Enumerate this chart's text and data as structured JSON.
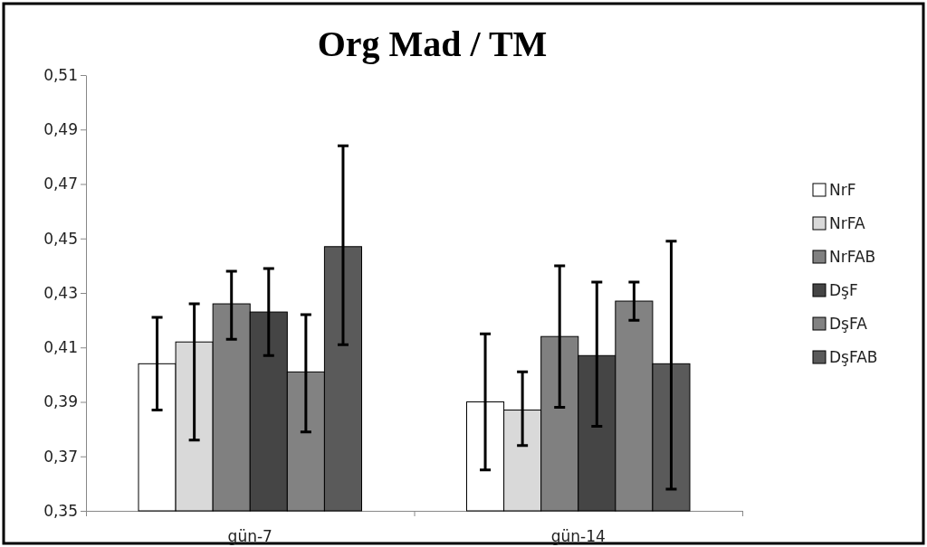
{
  "chart_data": {
    "type": "bar",
    "title": "Org Mad / TM",
    "categories": [
      "gün-7",
      "gün-14"
    ],
    "series": [
      {
        "name": "NrF",
        "color": "#ffffff",
        "values": [
          0.404,
          0.39
        ],
        "errors": [
          [
            0.387,
            0.421
          ],
          [
            0.365,
            0.415
          ]
        ]
      },
      {
        "name": "NrFA",
        "color": "#d9d9d9",
        "values": [
          0.412,
          0.387
        ],
        "errors": [
          [
            0.376,
            0.426
          ],
          [
            0.374,
            0.401
          ]
        ]
      },
      {
        "name": "NrFAB",
        "color": "#808080",
        "values": [
          0.426,
          0.414
        ],
        "errors": [
          [
            0.413,
            0.438
          ],
          [
            0.388,
            0.44
          ]
        ]
      },
      {
        "name": "DşF",
        "color": "#454545",
        "values": [
          0.423,
          0.407
        ],
        "errors": [
          [
            0.407,
            0.439
          ],
          [
            0.381,
            0.434
          ]
        ]
      },
      {
        "name": "DşFA",
        "color": "#828282",
        "values": [
          0.401,
          0.427
        ],
        "errors": [
          [
            0.379,
            0.422
          ],
          [
            0.42,
            0.434
          ]
        ]
      },
      {
        "name": "DşFAB",
        "color": "#5a5a5a",
        "values": [
          0.447,
          0.404
        ],
        "errors": [
          [
            0.411,
            0.484
          ],
          [
            0.358,
            0.449
          ]
        ]
      }
    ],
    "ylim": [
      0.35,
      0.51
    ],
    "yticks": [
      {
        "value": 0.35,
        "label": "0,35"
      },
      {
        "value": 0.37,
        "label": "0,37"
      },
      {
        "value": 0.39,
        "label": "0,39"
      },
      {
        "value": 0.41,
        "label": "0,41"
      },
      {
        "value": 0.43,
        "label": "0,43"
      },
      {
        "value": 0.45,
        "label": "0,45"
      },
      {
        "value": 0.47,
        "label": "0,47"
      },
      {
        "value": 0.49,
        "label": "0,49"
      },
      {
        "value": 0.51,
        "label": "0,51"
      }
    ],
    "grid": false,
    "legend": "right"
  }
}
